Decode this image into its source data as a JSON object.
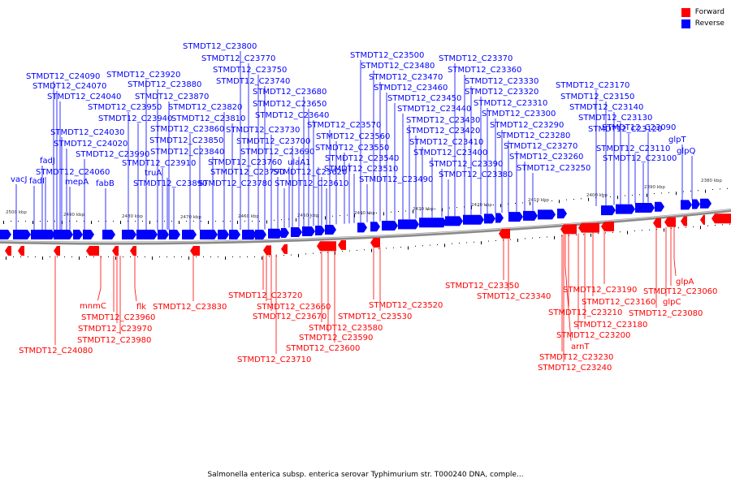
{
  "legend": {
    "forward": {
      "label": "Forward",
      "color": "#ff0000"
    },
    "reverse": {
      "label": "Reverse",
      "color": "#0000ff"
    }
  },
  "caption": "Salmonella enterica subsp. enterica serovar Typhimurium str. T000240 DNA, comple...",
  "ticks": [
    "2500 kbp",
    "2490 kbp",
    "2480 kbp",
    "2470 kbp",
    "2460 kbp",
    "2450 kbp",
    "2440 kbp",
    "2430 kbp",
    "2420 kbp",
    "2410 kbp",
    "2400 kbp",
    "2390 kbp",
    "2380 kbp"
  ],
  "reverse_labels": [
    "vacJ",
    "fadI",
    "fadJ",
    "STMDT12_C24060",
    "mepA",
    "fabB",
    "STMDT12_C23990",
    "STMDT12_C24020",
    "STMDT12_C24030",
    "STMDT12_C24040",
    "STMDT12_C24070",
    "STMDT12_C24090",
    "STMDT12_C23950",
    "STMDT12_C23940",
    "STMDT12_C23920",
    "STMDT12_C23880",
    "STMDT12_C23870",
    "STMDT12_C23910",
    "truA",
    "STMDT12_C23890",
    "STMDT12_C23860",
    "STMDT12_C23850",
    "STMDT12_C23840",
    "STMDT12_C23820",
    "STMDT12_C23810",
    "STMDT12_C23800",
    "STMDT12_C23770",
    "STMDT12_C23750",
    "STMDT12_C23740",
    "STMDT12_C23730",
    "STMDT12_C23790",
    "STMDT12_C23780",
    "STMDT12_C23760",
    "STMDT12_C23700",
    "STMDT12_C23690",
    "STMDT12_C23680",
    "STMDT12_C23650",
    "STMDT12_C23640",
    "ulaA1",
    "STMDT12_C23620",
    "STMDT12_C23610",
    "STMDT12_C23570",
    "STMDT12_C23560",
    "STMDT12_C23550",
    "STMDT12_C23540",
    "STMDT12_C23510",
    "STMDT12_C23500",
    "STMDT12_C23490",
    "STMDT12_C23480",
    "STMDT12_C23470",
    "STMDT12_C23460",
    "STMDT12_C23450",
    "STMDT12_C23440",
    "STMDT12_C23430",
    "STMDT12_C23420",
    "STMDT12_C23410",
    "STMDT12_C23400",
    "STMDT12_C23390",
    "STMDT12_C23380",
    "STMDT12_C23370",
    "STMDT12_C23360",
    "STMDT12_C23330",
    "STMDT12_C23320",
    "STMDT12_C23310",
    "STMDT12_C23300",
    "STMDT12_C23290",
    "STMDT12_C23280",
    "STMDT12_C23270",
    "STMDT12_C23260",
    "STMDT12_C23250",
    "STMDT12_C23170",
    "STMDT12_C23150",
    "STMDT12_C23140",
    "STMDT12_C23130",
    "STMDT12_C23120",
    "STMDT12_C23110",
    "STMDT12_C23100",
    "STMDT12_C23090",
    "glpT",
    "glpQ"
  ],
  "forward_labels": [
    "STMDT12_C24080",
    "mnmC",
    "STMDT12_C23960",
    "STMDT12_C23970",
    "STMDT12_C23980",
    "flk",
    "STMDT12_C23830",
    "STMDT12_C23720",
    "STMDT12_C23660",
    "STMDT12_C23670",
    "STMDT12_C23710",
    "STMDT12_C23580",
    "STMDT12_C23590",
    "STMDT12_C23600",
    "STMDT12_C23520",
    "STMDT12_C23530",
    "STMDT12_C23350",
    "STMDT12_C23340",
    "STMDT12_C23190",
    "STMDT12_C23210",
    "STMDT12_C23180",
    "STMDT12_C23200",
    "STMDT12_C23160",
    "arnT",
    "STMDT12_C23230",
    "STMDT12_C23240",
    "glpA",
    "STMDT12_C23060",
    "glpC",
    "STMDT12_C23080"
  ]
}
